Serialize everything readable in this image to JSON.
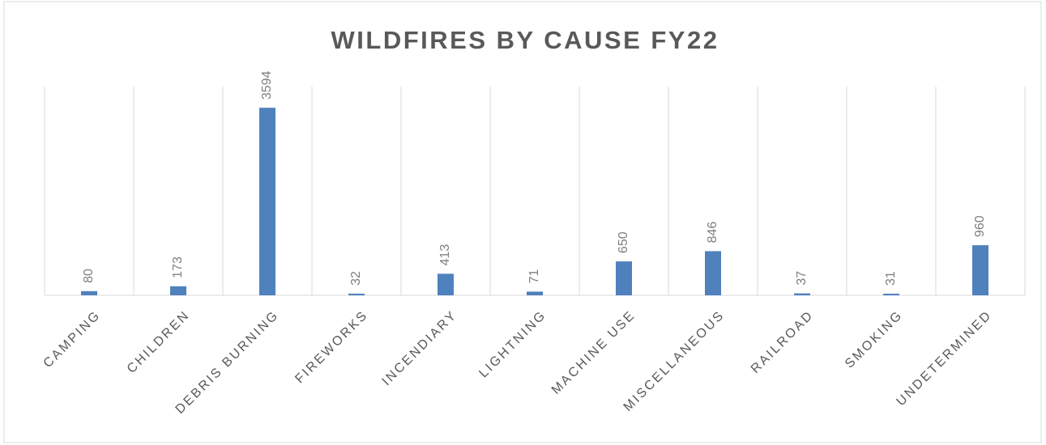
{
  "chart_data": {
    "type": "bar",
    "title": "WILDFIRES BY CAUSE FY22",
    "categories": [
      "CAMPING",
      "CHILDREN",
      "DEBRIS BURNING",
      "FIREWORKS",
      "INCENDIARY",
      "LIGHTNING",
      "MACHINE USE",
      "MISCELLANEOUS",
      "RAILROAD",
      "SMOKING",
      "UNDETERMINED"
    ],
    "values": [
      80,
      173,
      3594,
      32,
      413,
      71,
      650,
      846,
      37,
      31,
      960
    ],
    "color": "#4f81bd",
    "ylim": [
      0,
      4000
    ],
    "grid": true
  }
}
